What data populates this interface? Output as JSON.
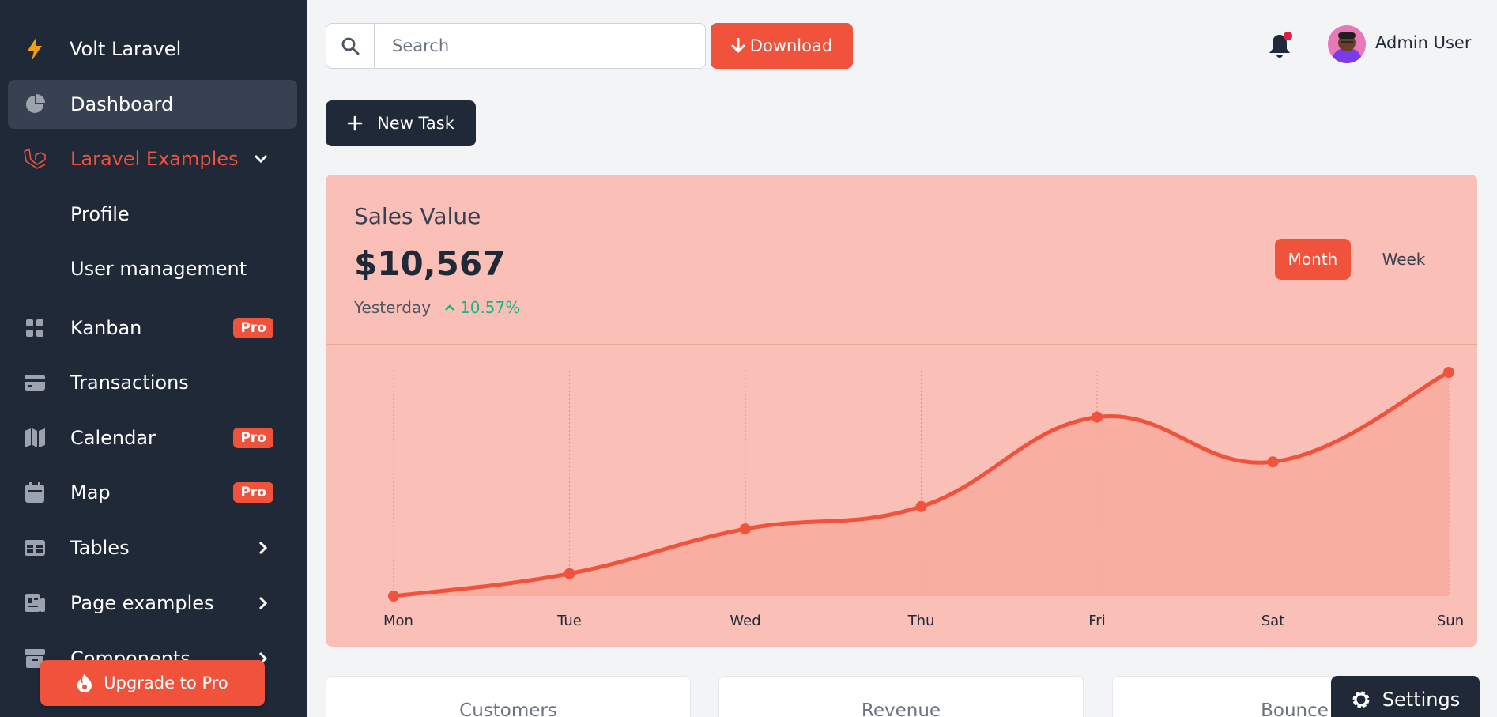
{
  "brand": {
    "name": "Volt Laravel"
  },
  "sidebar": {
    "items": [
      {
        "label": "Dashboard"
      },
      {
        "label": "Laravel Examples"
      },
      {
        "label": "Profile"
      },
      {
        "label": "User management"
      },
      {
        "label": "Kanban",
        "badge": "Pro"
      },
      {
        "label": "Transactions"
      },
      {
        "label": "Calendar",
        "badge": "Pro"
      },
      {
        "label": "Map",
        "badge": "Pro"
      },
      {
        "label": "Tables"
      },
      {
        "label": "Page examples"
      },
      {
        "label": "Components"
      }
    ],
    "upgrade_label": "Upgrade to Pro"
  },
  "header": {
    "search_placeholder": "Search",
    "download_label": "Download",
    "user_name": "Admin User"
  },
  "new_task_label": "New Task",
  "sales": {
    "title": "Sales Value",
    "value": "$10,567",
    "period": "Yesterday",
    "change": "10.57%",
    "tabs": [
      "Month",
      "Week"
    ],
    "active_tab": "Month"
  },
  "chart_data": {
    "type": "line",
    "categories": [
      "Mon",
      "Tue",
      "Wed",
      "Thu",
      "Fri",
      "Sat",
      "Sun"
    ],
    "values": [
      0,
      10,
      30,
      40,
      80,
      60,
      100
    ],
    "title": "",
    "xlabel": "",
    "ylabel": "",
    "color": "#f0523b"
  },
  "stats": [
    {
      "label": "Customers"
    },
    {
      "label": "Revenue"
    },
    {
      "label": "Bounce"
    }
  ],
  "settings_label": "Settings",
  "colors": {
    "accent": "#f0523b",
    "sidebar_bg": "#1f2937",
    "card_bg": "#fabfb7",
    "positive": "#10b981"
  }
}
